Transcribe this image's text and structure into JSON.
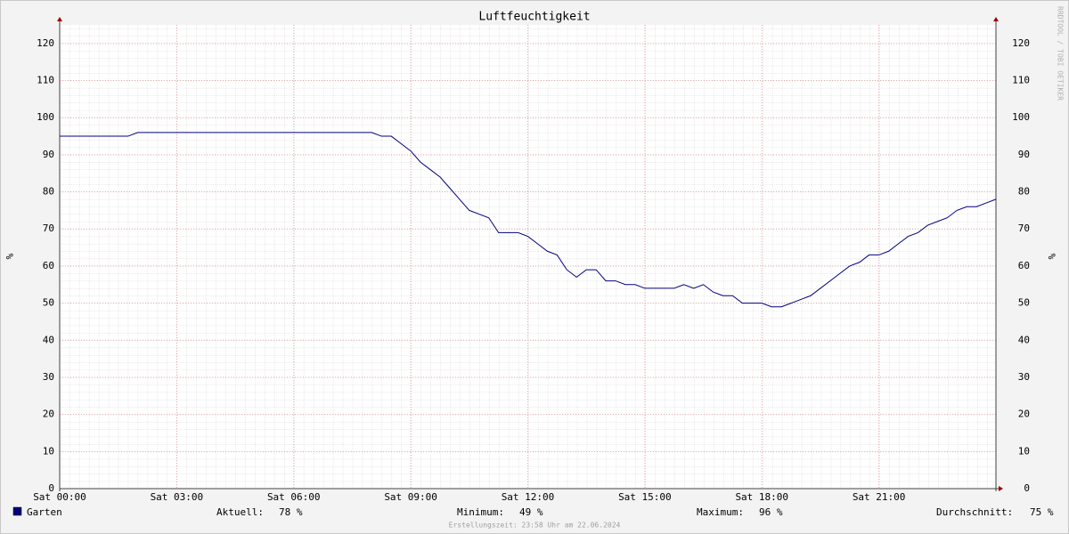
{
  "chart_data": {
    "type": "line",
    "title": "Luftfeuchtigkeit",
    "y_label": "%",
    "y2_label": "%",
    "watermark": "RRDTOOL / TOBI OETIKER",
    "footer": "Erstellungszeit: 23:58 Uhr am 22.06.2024",
    "x": [
      0,
      0.25,
      0.5,
      0.75,
      1,
      1.25,
      1.5,
      1.75,
      2,
      2.25,
      2.5,
      2.75,
      3,
      3.25,
      3.5,
      3.75,
      4,
      4.25,
      4.5,
      4.75,
      5,
      5.25,
      5.5,
      5.75,
      6,
      6.25,
      6.5,
      6.75,
      7,
      7.25,
      7.5,
      7.75,
      8,
      8.25,
      8.5,
      8.75,
      9,
      9.25,
      9.5,
      9.75,
      10,
      10.25,
      10.5,
      10.75,
      11,
      11.25,
      11.5,
      11.75,
      12,
      12.25,
      12.5,
      12.75,
      13,
      13.25,
      13.5,
      13.75,
      14,
      14.25,
      14.5,
      14.75,
      15,
      15.25,
      15.5,
      15.75,
      16,
      16.25,
      16.5,
      16.75,
      17,
      17.25,
      17.5,
      17.75,
      18,
      18.25,
      18.5,
      18.75,
      19,
      19.25,
      19.5,
      19.75,
      20,
      20.25,
      20.5,
      20.75,
      21,
      21.25,
      21.5,
      21.75,
      22,
      22.25,
      22.5,
      22.75,
      23,
      23.25,
      23.5,
      23.75,
      24
    ],
    "series": [
      {
        "name": "Garten",
        "color": "#000080",
        "values": [
          95,
          95,
          95,
          95,
          95,
          95,
          95,
          95,
          96,
          96,
          96,
          96,
          96,
          96,
          96,
          96,
          96,
          96,
          96,
          96,
          96,
          96,
          96,
          96,
          96,
          96,
          96,
          96,
          96,
          96,
          96,
          96,
          96,
          95,
          95,
          93,
          91,
          88,
          86,
          84,
          81,
          78,
          75,
          74,
          73,
          69,
          69,
          69,
          68,
          66,
          64,
          63,
          59,
          57,
          59,
          59,
          56,
          56,
          55,
          55,
          54,
          54,
          54,
          54,
          55,
          54,
          55,
          53,
          52,
          52,
          50,
          50,
          50,
          49,
          49,
          50,
          51,
          52,
          54,
          56,
          58,
          60,
          61,
          63,
          63,
          64,
          66,
          68,
          69,
          71,
          72,
          73,
          75,
          76,
          76,
          77,
          78
        ]
      }
    ],
    "stats": [
      {
        "name": "Aktuell:",
        "text": "78 %"
      },
      {
        "name": "Minimum:",
        "text": "49 %"
      },
      {
        "name": "Maximum:",
        "text": "96 %"
      },
      {
        "name": "Durchschnitt:",
        "text": "75 %"
      }
    ],
    "xlim": [
      0,
      24
    ],
    "xticks": [
      {
        "value": 0,
        "label": "Sat 00:00"
      },
      {
        "value": 3,
        "label": "Sat 03:00"
      },
      {
        "value": 6,
        "label": "Sat 06:00"
      },
      {
        "value": 9,
        "label": "Sat 09:00"
      },
      {
        "value": 12,
        "label": "Sat 12:00"
      },
      {
        "value": 15,
        "label": "Sat 15:00"
      },
      {
        "value": 18,
        "label": "Sat 18:00"
      },
      {
        "value": 21,
        "label": "Sat 21:00"
      }
    ],
    "ylim": [
      0,
      125
    ],
    "yticks": [
      0,
      10,
      20,
      30,
      40,
      50,
      60,
      70,
      80,
      90,
      100,
      110,
      120
    ],
    "grid": true
  }
}
